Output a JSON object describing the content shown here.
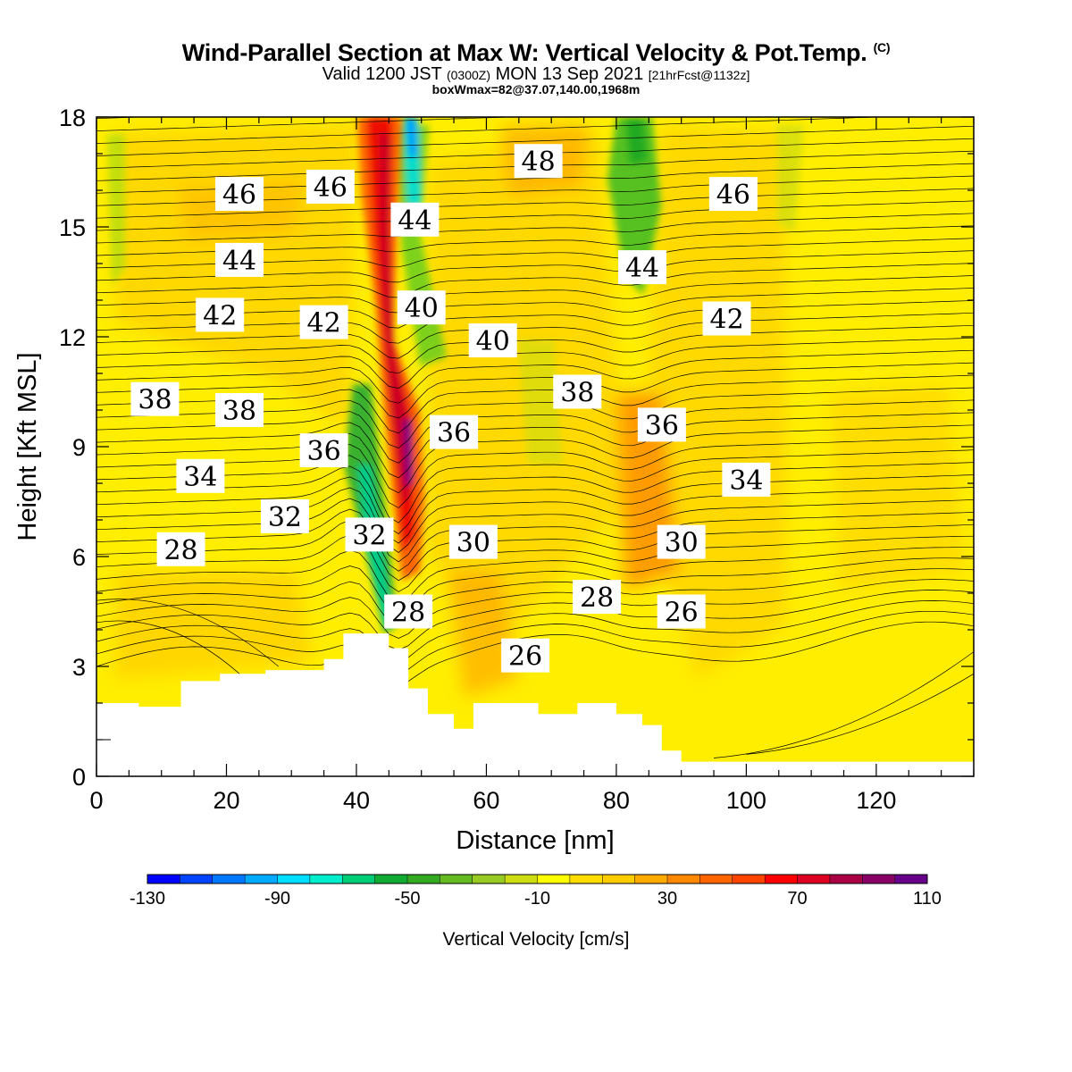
{
  "title": {
    "main": "Wind-Parallel Section at Max W: Vertical Velocity & Pot.Temp.",
    "copyright": "(C)",
    "valid_prefix": "Valid 1200 JST",
    "valid_utc": "(0300Z)",
    "valid_date": "MON 13 Sep 2021",
    "forecast": "[21hrFcst@1132z]",
    "box": "boxWmax=82@37.07,140.00,1968m"
  },
  "chart_data": {
    "type": "heatmap",
    "xlabel": "Distance [nm]",
    "ylabel": "Height [Kft MSL]",
    "xlim": [
      0,
      135
    ],
    "ylim": [
      0,
      18
    ],
    "x_ticks": [
      0,
      20,
      40,
      60,
      80,
      100,
      120
    ],
    "y_ticks": [
      0,
      3,
      6,
      9,
      12,
      15,
      18
    ],
    "colorbar": {
      "title": "Vertical Velocity [cm/s]",
      "min": -130,
      "max": 110,
      "step": 10,
      "labels": [
        -130,
        -90,
        -50,
        -10,
        30,
        70,
        110
      ],
      "colors": [
        "#0000ff",
        "#0044ff",
        "#0077ff",
        "#00aaff",
        "#00ddff",
        "#00eecc",
        "#00cc77",
        "#11aa33",
        "#33aa22",
        "#66bb22",
        "#99cc22",
        "#ccdd11",
        "#ffff00",
        "#ffdd00",
        "#ffcc00",
        "#ffaa00",
        "#ff8800",
        "#ff6600",
        "#ff4400",
        "#ff0000",
        "#dd0022",
        "#aa0044",
        "#880066",
        "#660088"
      ]
    },
    "w_features": [
      {
        "type": "updraft",
        "x": 44,
        "y": 6,
        "x_top": 43,
        "y_top": 18,
        "peak": 110
      },
      {
        "type": "downdraft",
        "x": 40,
        "y": 6,
        "x_top": 46,
        "y_top": 18,
        "peak": -110
      },
      {
        "type": "downdraft",
        "x": 82,
        "y": 14,
        "x_top": 82,
        "y_top": 18,
        "peak": -50
      },
      {
        "type": "updraft",
        "x": 80,
        "y": 8,
        "peak": 50
      }
    ],
    "theta_labels": [
      {
        "label": "46",
        "x": 22,
        "y": 15.9
      },
      {
        "label": "46",
        "x": 36,
        "y": 16.1
      },
      {
        "label": "48",
        "x": 68,
        "y": 16.8
      },
      {
        "label": "46",
        "x": 98,
        "y": 15.9
      },
      {
        "label": "44",
        "x": 22,
        "y": 14.1
      },
      {
        "label": "44",
        "x": 49,
        "y": 15.2
      },
      {
        "label": "44",
        "x": 84,
        "y": 13.9
      },
      {
        "label": "42",
        "x": 19,
        "y": 12.6
      },
      {
        "label": "42",
        "x": 35,
        "y": 12.4
      },
      {
        "label": "40",
        "x": 50,
        "y": 12.8
      },
      {
        "label": "40",
        "x": 61,
        "y": 11.9
      },
      {
        "label": "42",
        "x": 97,
        "y": 12.5
      },
      {
        "label": "38",
        "x": 9,
        "y": 10.3
      },
      {
        "label": "38",
        "x": 22,
        "y": 10.0
      },
      {
        "label": "38",
        "x": 74,
        "y": 10.5
      },
      {
        "label": "36",
        "x": 35,
        "y": 8.9
      },
      {
        "label": "36",
        "x": 55,
        "y": 9.4
      },
      {
        "label": "36",
        "x": 87,
        "y": 9.6
      },
      {
        "label": "34",
        "x": 16,
        "y": 8.2
      },
      {
        "label": "34",
        "x": 100,
        "y": 8.1
      },
      {
        "label": "32",
        "x": 29,
        "y": 7.1
      },
      {
        "label": "32",
        "x": 42,
        "y": 6.6
      },
      {
        "label": "30",
        "x": 58,
        "y": 6.4
      },
      {
        "label": "30",
        "x": 90,
        "y": 6.4
      },
      {
        "label": "28",
        "x": 13,
        "y": 6.2
      },
      {
        "label": "28",
        "x": 48,
        "y": 4.5
      },
      {
        "label": "28",
        "x": 77,
        "y": 4.9
      },
      {
        "label": "26",
        "x": 90,
        "y": 4.5
      },
      {
        "label": "26",
        "x": 66,
        "y": 3.3
      }
    ],
    "terrain": [
      [
        0,
        2.0
      ],
      [
        6.5,
        2.0
      ],
      [
        6.5,
        1.9
      ],
      [
        13,
        1.9
      ],
      [
        13,
        2.6
      ],
      [
        19,
        2.6
      ],
      [
        19,
        2.8
      ],
      [
        26,
        2.8
      ],
      [
        26,
        2.9
      ],
      [
        35,
        2.9
      ],
      [
        35,
        3.2
      ],
      [
        38,
        3.2
      ],
      [
        38,
        3.9
      ],
      [
        45,
        3.9
      ],
      [
        45,
        3.5
      ],
      [
        48,
        3.5
      ],
      [
        48,
        2.4
      ],
      [
        51,
        2.4
      ],
      [
        51,
        1.7
      ],
      [
        55,
        1.7
      ],
      [
        55,
        1.3
      ],
      [
        58,
        1.3
      ],
      [
        58,
        2.0
      ],
      [
        68,
        2.0
      ],
      [
        68,
        1.7
      ],
      [
        74,
        1.7
      ],
      [
        74,
        2.0
      ],
      [
        80,
        2.0
      ],
      [
        80,
        1.7
      ],
      [
        84,
        1.7
      ],
      [
        84,
        1.4
      ],
      [
        87,
        1.4
      ],
      [
        87,
        0.7
      ],
      [
        90,
        0.7
      ],
      [
        90,
        0.4
      ],
      [
        135,
        0.4
      ]
    ]
  }
}
